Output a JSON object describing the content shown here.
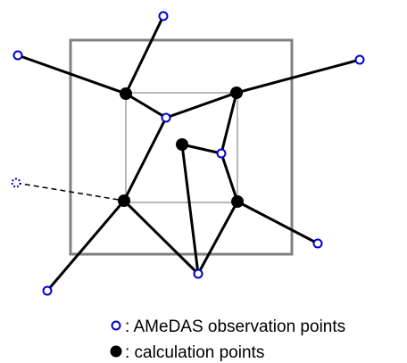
{
  "colors": {
    "background": "#ffffff",
    "edge": "#000000",
    "frame": "#808080",
    "inner_frame": "#a0a0a0",
    "observation_point": "#0000cc",
    "calculation_point": "#000000"
  },
  "legend": {
    "observation_label": ": AMeDAS observation points",
    "calculation_label": ": calculation points"
  }
}
